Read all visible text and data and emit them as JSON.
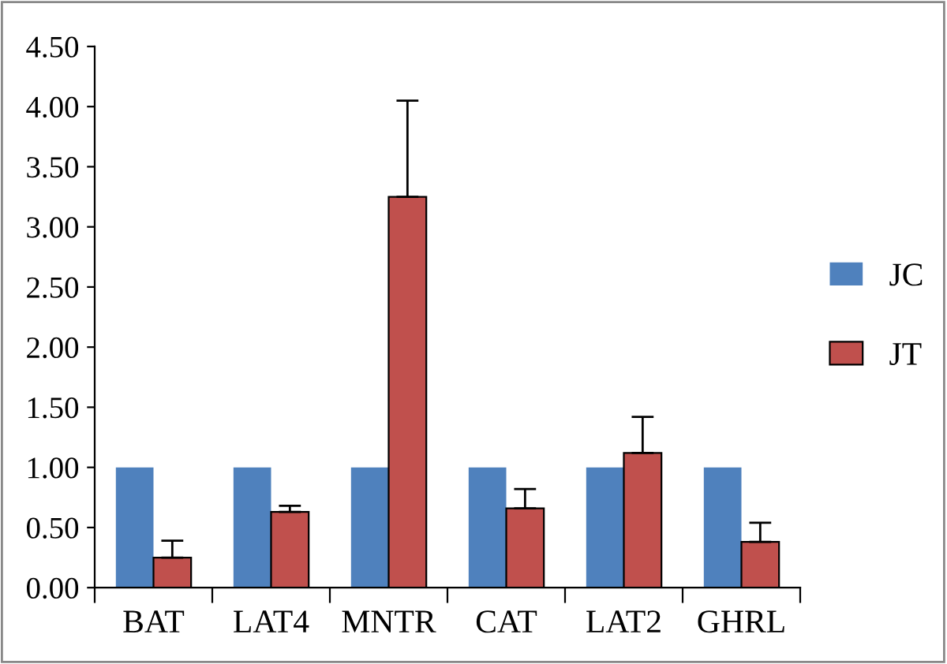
{
  "chart_data": {
    "type": "bar",
    "categories": [
      "BAT",
      "LAT4",
      "MNTR",
      "CAT",
      "LAT2",
      "GHRL"
    ],
    "series": [
      {
        "name": "JC",
        "color": "#4f81bd",
        "values": [
          1.0,
          1.0,
          1.0,
          1.0,
          1.0,
          1.0
        ]
      },
      {
        "name": "JT",
        "color": "#c0504d",
        "values": [
          0.25,
          0.63,
          3.25,
          0.66,
          1.12,
          0.38
        ],
        "errors": [
          [
            0.25,
            0.39
          ],
          [
            0.63,
            0.68
          ],
          [
            3.25,
            4.05
          ],
          [
            0.66,
            0.82
          ],
          [
            1.12,
            1.42
          ],
          [
            0.38,
            0.54
          ]
        ]
      }
    ],
    "ylim": [
      0,
      4.5
    ],
    "yticks": [
      {
        "value": 0,
        "label": "0.00"
      },
      {
        "value": 0.5,
        "label": "0.50"
      },
      {
        "value": 1,
        "label": "1.00"
      },
      {
        "value": 1.5,
        "label": "1.50"
      },
      {
        "value": 2,
        "label": "2.00"
      },
      {
        "value": 2.5,
        "label": "2.50"
      },
      {
        "value": 3,
        "label": "3.00"
      },
      {
        "value": 3.5,
        "label": "3.50"
      },
      {
        "value": 4,
        "label": "4.00"
      },
      {
        "value": 4.5,
        "label": "4.50"
      }
    ],
    "legend": "right"
  }
}
